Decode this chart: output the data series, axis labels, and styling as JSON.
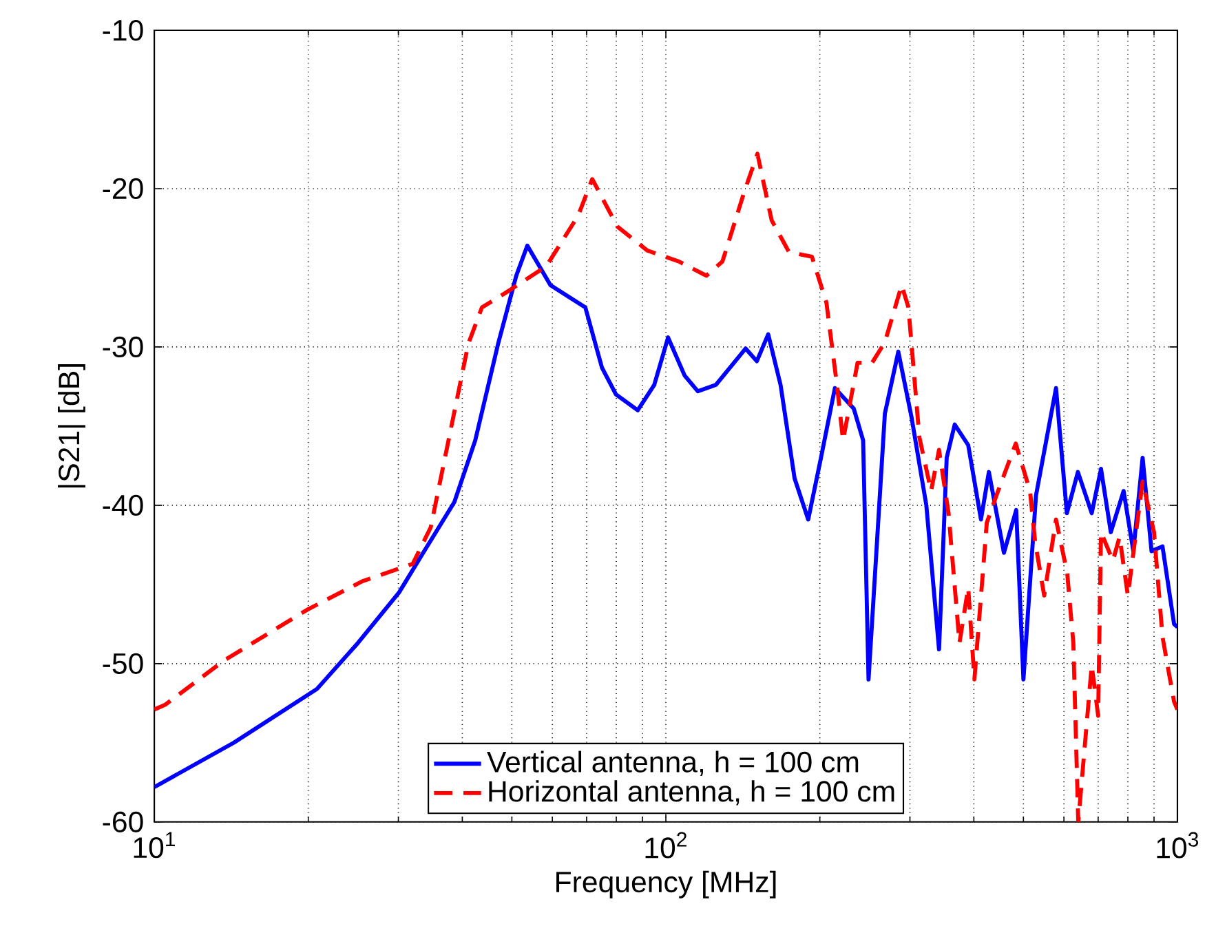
{
  "chart_data": {
    "type": "line",
    "xlabel": "Frequency [MHz]",
    "ylabel": "|S21| [dB]",
    "log": "x",
    "grid": true,
    "legend": "bottom",
    "xlim": [
      10,
      1000
    ],
    "ylim": [
      -60,
      -10
    ],
    "xticks": [
      {
        "value": 10,
        "label": "10$^{1}$"
      },
      {
        "value": 100,
        "label": "10$^{2}$"
      },
      {
        "value": 1000,
        "label": "10$^{3}$"
      }
    ],
    "yticks": [
      -60,
      -50,
      -40,
      -30,
      -20,
      -10
    ],
    "series": [
      {
        "name": "Vertical antenna, h = 100 cm",
        "color": "#0000ff",
        "line_style": "solid",
        "x": [
          10,
          14.3,
          20.8,
          25,
          30.1,
          33.7,
          38.6,
          42.4,
          47,
          51,
          53.6,
          59.5,
          69.6,
          75,
          79.9,
          88.1,
          94.9,
          101,
          108.8,
          115.5,
          125.2,
          143.2,
          150.6,
          158.5,
          167.6,
          178.5,
          189.8,
          201,
          214,
          233,
          243,
          249,
          268,
          284.7,
          302,
          323,
          342,
          354,
          367,
          390,
          413,
          428,
          458,
          484,
          500,
          529,
          579,
          608,
          639,
          680,
          709,
          741,
          785,
          820,
          855,
          890,
          935,
          985,
          1000
        ],
        "values": [
          -57.8,
          -55.0,
          -51.6,
          -48.7,
          -45.5,
          -42.9,
          -39.8,
          -35.9,
          -29.8,
          -25.5,
          -23.6,
          -26.1,
          -27.5,
          -31.3,
          -33.0,
          -34.0,
          -32.4,
          -29.4,
          -31.8,
          -32.8,
          -32.4,
          -30.1,
          -30.9,
          -29.2,
          -32.4,
          -38.3,
          -40.9,
          -37.0,
          -32.6,
          -33.9,
          -35.9,
          -51,
          -34.2,
          -30.3,
          -34.4,
          -40,
          -49.1,
          -37.0,
          -34.9,
          -36.2,
          -40.9,
          -37.9,
          -43.0,
          -40.3,
          -51,
          -39.4,
          -32.6,
          -40.5,
          -37.9,
          -40.5,
          -37.7,
          -41.7,
          -39.1,
          -42.9,
          -37.0,
          -42.9,
          -42.6,
          -47.5,
          -47.7
        ]
      },
      {
        "name": "Horizontal antenna, h = 100 cm",
        "color": "#ff0000",
        "line_style": "dashed",
        "x": [
          10,
          10.5,
          13.7,
          19.9,
          25.5,
          32,
          34.7,
          37,
          39.4,
          41.1,
          43.7,
          48.5,
          58.4,
          67.4,
          71.8,
          80.4,
          91.9,
          106,
          120,
          129,
          142,
          151,
          161,
          174,
          193,
          206,
          216,
          222,
          237,
          253,
          268,
          289,
          298,
          313,
          330,
          342,
          357,
          375,
          390,
          401,
          424,
          446,
          483,
          515,
          527,
          549,
          579,
          609,
          626,
          640,
          680,
          700,
          709,
          748,
          771,
          800,
          855,
          900,
          935,
          960,
          985,
          1000
        ],
        "values": [
          -52.9,
          -52.6,
          -49.8,
          -46.6,
          -44.8,
          -43.7,
          -41.4,
          -37.0,
          -32.7,
          -29.8,
          -27.5,
          -26.6,
          -24.9,
          -21.7,
          -19.4,
          -22.4,
          -23.9,
          -24.6,
          -25.5,
          -24.6,
          -20.3,
          -17.8,
          -22.0,
          -24.0,
          -24.3,
          -27.2,
          -32.4,
          -35.9,
          -31.0,
          -31.0,
          -29.7,
          -26.1,
          -27.5,
          -35.7,
          -39.1,
          -36.5,
          -40.5,
          -48.7,
          -45.2,
          -51,
          -41.1,
          -39.1,
          -36.1,
          -39.1,
          -42.3,
          -45.7,
          -40.9,
          -44.3,
          -48.7,
          -60,
          -50.1,
          -53.3,
          -41.7,
          -43.5,
          -42,
          -45.7,
          -38.5,
          -41.7,
          -48.3,
          -50.4,
          -52.4,
          -52.9
        ]
      }
    ]
  }
}
